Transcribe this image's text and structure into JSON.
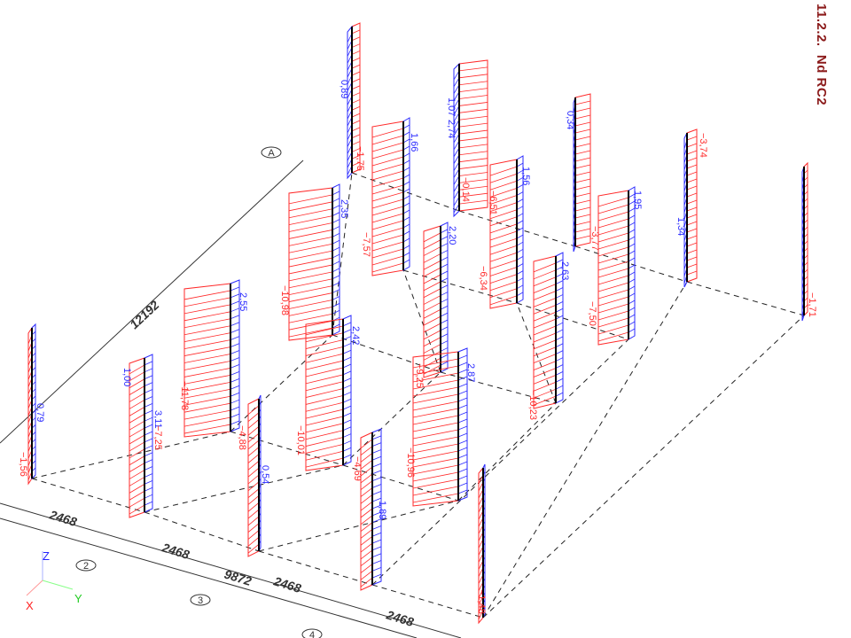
{
  "title": "11.2.2.  Nd RC2",
  "colors": {
    "negative": "#ff2a2a",
    "positive": "#2a2aff",
    "member": "#000000",
    "title": "#8b1a1a"
  },
  "columns": [
    {
      "labels": [
        {
          "text": "0,89",
          "sign": "pos"
        },
        {
          "text": "−1,75",
          "sign": "neg"
        }
      ]
    },
    {
      "labels": [
        {
          "text": "1,66",
          "sign": "pos"
        },
        {
          "text": "−7,57",
          "sign": "neg"
        }
      ]
    },
    {
      "labels": [
        {
          "text": "1,07",
          "sign": "pos"
        },
        {
          "text": "2,74",
          "sign": "pos"
        },
        {
          "text": "−0,14",
          "sign": "neg"
        }
      ]
    },
    {
      "labels": [
        {
          "text": "1,56",
          "sign": "pos"
        },
        {
          "text": "−6,51",
          "sign": "neg"
        },
        {
          "text": "−6,34",
          "sign": "neg"
        }
      ]
    },
    {
      "labels": [
        {
          "text": "0,34",
          "sign": "pos"
        },
        {
          "text": "−3,77",
          "sign": "neg"
        }
      ]
    },
    {
      "labels": [
        {
          "text": "1,95",
          "sign": "pos"
        },
        {
          "text": "−7,50",
          "sign": "neg"
        }
      ]
    },
    {
      "labels": [
        {
          "text": "−3,74",
          "sign": "neg"
        },
        {
          "text": "1,34",
          "sign": "pos"
        }
      ]
    },
    {
      "labels": [
        {
          "text": "−1,71",
          "sign": "neg"
        }
      ]
    },
    {
      "labels": [
        {
          "text": "2,35",
          "sign": "pos"
        },
        {
          "text": "−10,98",
          "sign": "neg"
        }
      ]
    },
    {
      "labels": [
        {
          "text": "2,20",
          "sign": "pos"
        },
        {
          "text": "−9,25",
          "sign": "neg"
        }
      ]
    },
    {
      "labels": [
        {
          "text": "2,63",
          "sign": "pos"
        },
        {
          "text": "−10,23",
          "sign": "neg"
        }
      ]
    },
    {
      "labels": [
        {
          "text": "2,55",
          "sign": "pos"
        },
        {
          "text": "−11,78",
          "sign": "neg"
        },
        {
          "text": "−4,88",
          "sign": "neg"
        }
      ]
    },
    {
      "labels": [
        {
          "text": "2,42",
          "sign": "pos"
        },
        {
          "text": "−10,01",
          "sign": "neg"
        },
        {
          "text": "−4,69",
          "sign": "neg"
        }
      ]
    },
    {
      "labels": [
        {
          "text": "2,87",
          "sign": "pos"
        },
        {
          "text": "−10,96",
          "sign": "neg"
        }
      ]
    },
    {
      "labels": [
        {
          "text": "0,79",
          "sign": "pos"
        },
        {
          "text": "−1,56",
          "sign": "neg"
        }
      ]
    },
    {
      "labels": [
        {
          "text": "3,11",
          "sign": "pos"
        },
        {
          "text": "1,00",
          "sign": "pos"
        },
        {
          "text": "−7,25",
          "sign": "neg"
        }
      ]
    },
    {
      "labels": [
        {
          "text": "0,54",
          "sign": "pos"
        }
      ]
    },
    {
      "labels": [
        {
          "text": "1,89",
          "sign": "pos"
        }
      ]
    },
    {
      "labels": [
        {
          "text": "−1,48",
          "sign": "neg"
        }
      ]
    }
  ],
  "dimensions": {
    "depth_total": "12192",
    "span_total": "9872",
    "spans": [
      "2468",
      "2468",
      "2468",
      "2468"
    ]
  },
  "grid_axes": [
    "A",
    "2",
    "3",
    "4"
  ],
  "axis_triad": {
    "x": "X",
    "y": "Y",
    "z": "Z"
  }
}
